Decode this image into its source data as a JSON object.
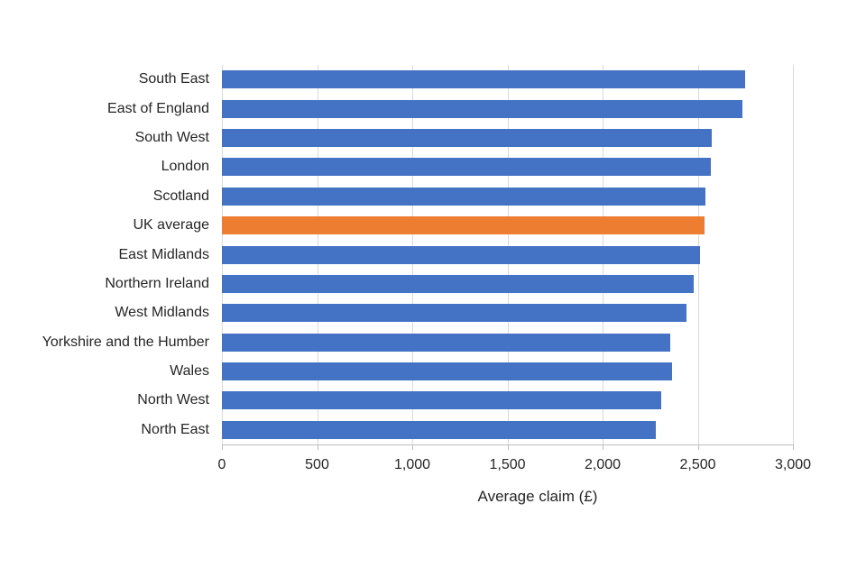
{
  "chart_data": {
    "type": "bar",
    "orientation": "horizontal",
    "title": "",
    "xlabel": "Average claim (£)",
    "ylabel": "",
    "categories": [
      "South East",
      "East of England",
      "South West",
      "London",
      "Scotland",
      "UK average",
      "East Midlands",
      "Northern Ireland",
      "West Midlands",
      "Yorkshire and the Humber",
      "Wales",
      "North West",
      "North East"
    ],
    "values": [
      2750,
      2735,
      2575,
      2570,
      2540,
      2535,
      2510,
      2480,
      2440,
      2355,
      2365,
      2310,
      2280
    ],
    "xlim": [
      0,
      3000
    ],
    "xticks": [
      0,
      500,
      1000,
      1500,
      2000,
      2500,
      3000
    ],
    "xtick_labels": [
      "0",
      "500",
      "1,000",
      "1,500",
      "2,000",
      "2,500",
      "3,000"
    ],
    "grid": true,
    "legend": "none",
    "bar_color": "#4472C4",
    "highlight_category": "UK average",
    "highlight_color": "#ED7D31",
    "gridline_color": "#D9D9D9",
    "axis_line_color": "#BFBFBF",
    "text_color": "#262626",
    "background_color": "#FFFFFF"
  }
}
